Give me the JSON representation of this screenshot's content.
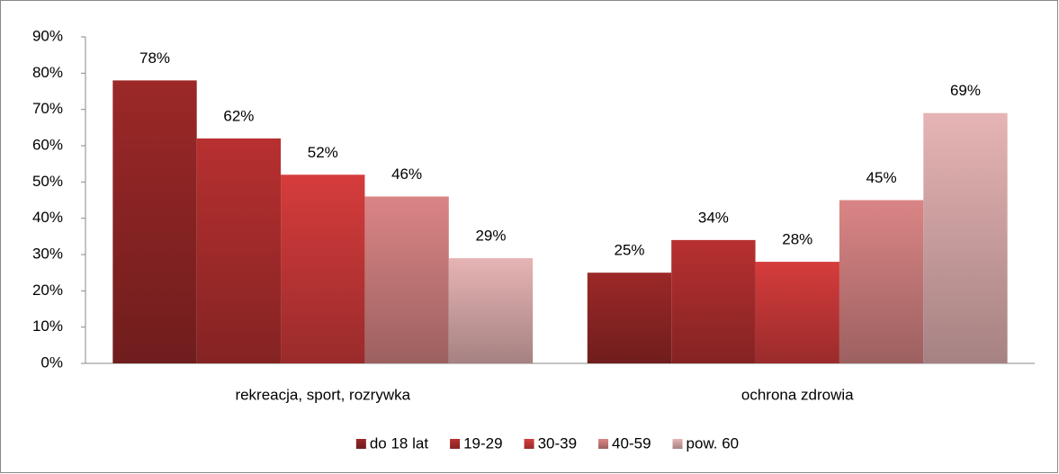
{
  "chart_data": {
    "type": "bar",
    "categories": [
      "rekreacja, sport, rozrywka",
      "ochrona zdrowia"
    ],
    "series": [
      {
        "name": "do 18 lat",
        "color": "#9c2828",
        "values": [
          78,
          25
        ],
        "value_labels": [
          "78%",
          "25%"
        ]
      },
      {
        "name": "19-29",
        "color": "#b83030",
        "values": [
          62,
          34
        ],
        "value_labels": [
          "62%",
          "34%"
        ]
      },
      {
        "name": "30-39",
        "color": "#d63c3c",
        "values": [
          52,
          28
        ],
        "value_labels": [
          "52%",
          "28%"
        ]
      },
      {
        "name": "40-59",
        "color": "#da8585",
        "values": [
          46,
          45
        ],
        "value_labels": [
          "46%",
          "45%"
        ]
      },
      {
        "name": "pow. 60",
        "color": "#e6b4b4",
        "values": [
          29,
          69
        ],
        "value_labels": [
          "29%",
          "69%"
        ]
      }
    ],
    "ylim": [
      0,
      90
    ],
    "yticks": [
      {
        "value": 0,
        "label": "0%"
      },
      {
        "value": 10,
        "label": "10%"
      },
      {
        "value": 20,
        "label": "20%"
      },
      {
        "value": 30,
        "label": "30%"
      },
      {
        "value": 40,
        "label": "40%"
      },
      {
        "value": 50,
        "label": "50%"
      },
      {
        "value": 60,
        "label": "60%"
      },
      {
        "value": 70,
        "label": "70%"
      },
      {
        "value": 80,
        "label": "80%"
      },
      {
        "value": 90,
        "label": "90%"
      }
    ],
    "grid": false,
    "legend": "bottom"
  }
}
